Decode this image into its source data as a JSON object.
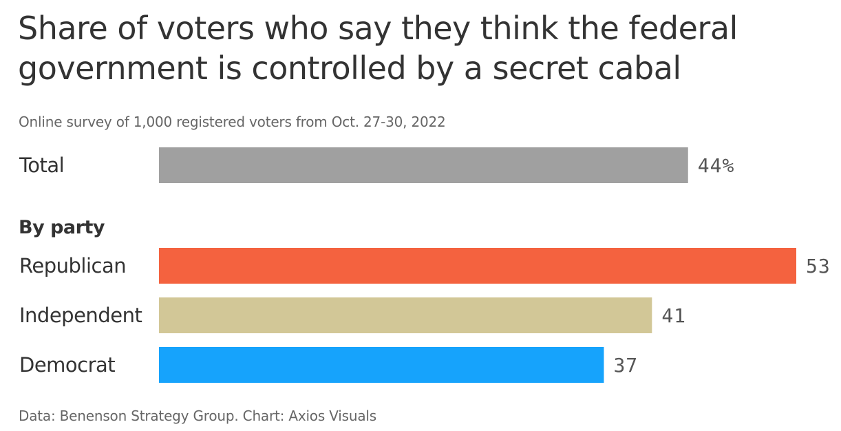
{
  "chart_data": {
    "type": "bar",
    "orientation": "horizontal",
    "title": "Share of voters who say they think the federal government is controlled by a secret cabal",
    "subtitle": "Online survey of 1,000 registered voters from Oct. 27-30, 2022",
    "source": "Data: Benenson Strategy Group. Chart: Axios Visuals",
    "group_label": "By party",
    "categories": [
      "Total",
      "Republican",
      "Independent",
      "Democrat"
    ],
    "values": [
      44,
      53,
      41,
      37
    ],
    "value_labels": [
      "44%",
      "53",
      "41",
      "37"
    ],
    "colors": [
      "#a0a0a0",
      "#f4623f",
      "#d2c797",
      "#16a3fc"
    ],
    "unit": "%",
    "xlim": [
      0,
      53
    ],
    "grid": false,
    "legend": "none"
  }
}
